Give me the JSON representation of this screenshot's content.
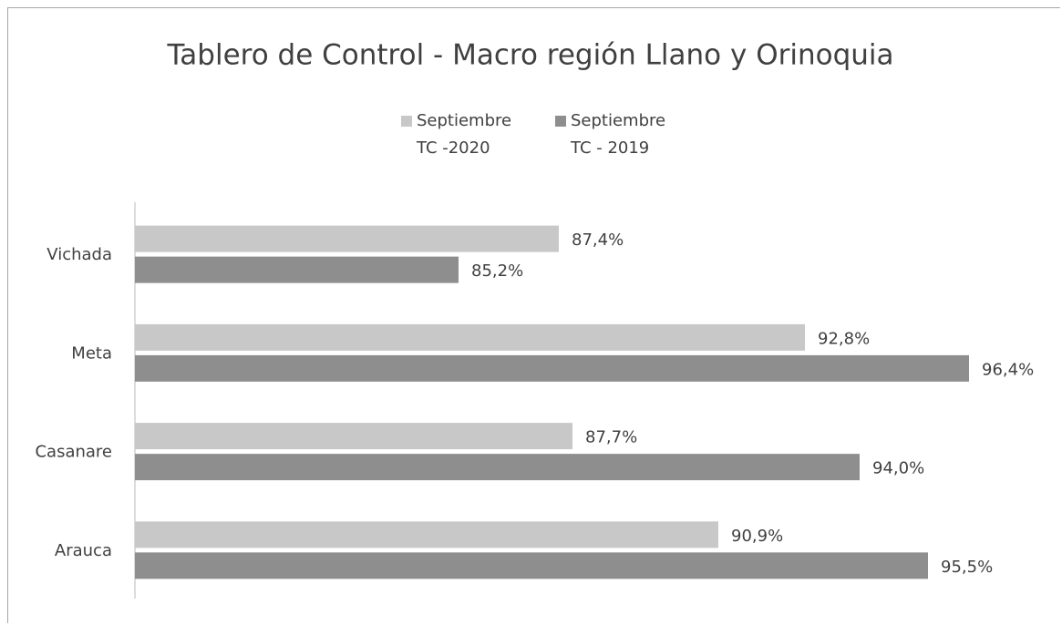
{
  "chart_data": {
    "type": "bar",
    "orientation": "horizontal",
    "title": "Tablero de Control - Macro región Llano y Orinoquia",
    "categories": [
      "Vichada",
      "Meta",
      "Casanare",
      "Arauca"
    ],
    "series": [
      {
        "name": "Septiembre TC -2020",
        "color": "#c8c8c8",
        "values": [
          87.4,
          92.8,
          87.7,
          90.9
        ],
        "value_labels": [
          "87,4%",
          "92,8%",
          "87,7%",
          "90,9%"
        ]
      },
      {
        "name": "Septiembre TC - 2019",
        "color": "#8e8e8e",
        "values": [
          85.2,
          96.4,
          94.0,
          95.5
        ],
        "value_labels": [
          "85,2%",
          "96,4%",
          "94,0%",
          "95,5%"
        ]
      }
    ],
    "xlim": [
      78.1,
      97.5
    ],
    "legend": "top"
  }
}
